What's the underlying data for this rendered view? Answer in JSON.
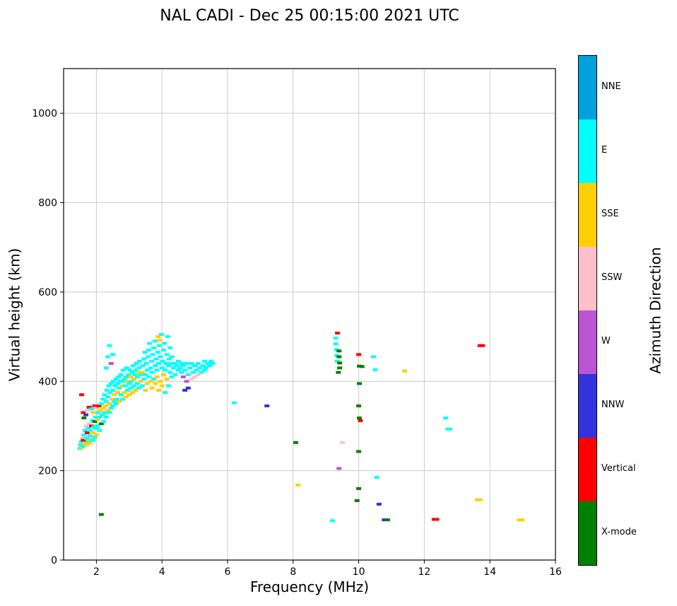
{
  "chart_data": {
    "type": "scatter",
    "title": "NAL CADI - Dec 25 00:15:00 2021 UTC",
    "xlabel": "Frequency (MHz)",
    "ylabel": "Virtual height (km)",
    "xlim": [
      1,
      16
    ],
    "ylim": [
      0,
      1100
    ],
    "xticks": [
      2,
      4,
      6,
      8,
      10,
      12,
      14,
      16
    ],
    "yticks": [
      0,
      200,
      400,
      600,
      800,
      1000
    ],
    "grid": true,
    "grid_color": "#cccccc",
    "marker": {
      "width": 7,
      "height": 4
    },
    "colorbar": {
      "title": "Azimuth Direction",
      "categories": [
        {
          "label": "NNE",
          "color": "#00A0DC"
        },
        {
          "label": "E",
          "color": "#00FFFF"
        },
        {
          "label": "SSE",
          "color": "#FFD000"
        },
        {
          "label": "SSW",
          "color": "#FFC0CB"
        },
        {
          "label": "W",
          "color": "#BA55D3"
        },
        {
          "label": "NNW",
          "color": "#3333DD"
        },
        {
          "label": "Vertical",
          "color": "#FF0000"
        },
        {
          "label": "X-mode",
          "color": "#008000"
        }
      ]
    },
    "points_format": [
      "frequency_mhz",
      "virtual_height_km",
      "category_index"
    ],
    "points": [
      [
        1.5,
        250,
        1
      ],
      [
        1.52,
        258,
        1
      ],
      [
        1.55,
        252,
        2
      ],
      [
        1.55,
        265,
        1
      ],
      [
        1.58,
        273,
        3
      ],
      [
        1.6,
        255,
        1
      ],
      [
        1.6,
        268,
        6
      ],
      [
        1.62,
        280,
        1
      ],
      [
        1.65,
        262,
        2
      ],
      [
        1.65,
        290,
        1
      ],
      [
        1.68,
        300,
        3
      ],
      [
        1.7,
        258,
        2
      ],
      [
        1.7,
        272,
        1
      ],
      [
        1.72,
        285,
        6
      ],
      [
        1.75,
        265,
        1
      ],
      [
        1.75,
        295,
        1
      ],
      [
        1.78,
        305,
        3
      ],
      [
        1.8,
        262,
        2
      ],
      [
        1.8,
        278,
        1
      ],
      [
        1.82,
        290,
        1
      ],
      [
        1.85,
        270,
        2
      ],
      [
        1.85,
        300,
        6
      ],
      [
        1.88,
        312,
        1
      ],
      [
        1.9,
        268,
        1
      ],
      [
        1.9,
        285,
        2
      ],
      [
        1.92,
        298,
        1
      ],
      [
        1.95,
        275,
        1
      ],
      [
        1.95,
        310,
        7
      ],
      [
        1.98,
        320,
        1
      ],
      [
        2.0,
        280,
        2
      ],
      [
        2.0,
        295,
        1
      ],
      [
        1.55,
        370,
        6
      ],
      [
        1.6,
        330,
        6
      ],
      [
        1.62,
        318,
        7
      ],
      [
        1.68,
        325,
        5
      ],
      [
        1.72,
        335,
        3
      ],
      [
        1.78,
        342,
        6
      ],
      [
        1.85,
        338,
        1
      ],
      [
        1.9,
        330,
        2
      ],
      [
        1.95,
        345,
        6
      ],
      [
        2.0,
        340,
        3
      ],
      [
        2.02,
        300,
        1
      ],
      [
        2.05,
        315,
        2
      ],
      [
        2.05,
        330,
        1
      ],
      [
        2.08,
        345,
        6
      ],
      [
        2.1,
        290,
        1
      ],
      [
        2.1,
        320,
        1
      ],
      [
        2.12,
        335,
        2
      ],
      [
        2.15,
        350,
        1
      ],
      [
        2.15,
        305,
        7
      ],
      [
        2.18,
        325,
        1
      ],
      [
        2.2,
        340,
        2
      ],
      [
        2.2,
        360,
        1
      ],
      [
        2.22,
        310,
        1
      ],
      [
        2.25,
        330,
        1
      ],
      [
        2.25,
        370,
        1
      ],
      [
        2.28,
        345,
        2
      ],
      [
        2.3,
        320,
        1
      ],
      [
        2.3,
        355,
        1
      ],
      [
        2.32,
        380,
        1
      ],
      [
        2.35,
        335,
        2
      ],
      [
        2.35,
        365,
        1
      ],
      [
        2.38,
        390,
        1
      ],
      [
        2.4,
        330,
        1
      ],
      [
        2.4,
        350,
        2
      ],
      [
        2.42,
        375,
        1
      ],
      [
        2.45,
        340,
        1
      ],
      [
        2.45,
        395,
        1
      ],
      [
        2.48,
        360,
        2
      ],
      [
        2.5,
        345,
        1
      ],
      [
        2.5,
        380,
        1
      ],
      [
        2.52,
        400,
        1
      ],
      [
        2.55,
        355,
        1
      ],
      [
        2.55,
        370,
        2
      ],
      [
        2.58,
        390,
        1
      ],
      [
        2.6,
        350,
        1
      ],
      [
        2.6,
        405,
        1
      ],
      [
        2.3,
        430,
        1
      ],
      [
        2.35,
        455,
        1
      ],
      [
        2.4,
        480,
        1
      ],
      [
        2.45,
        440,
        4
      ],
      [
        2.5,
        460,
        1
      ],
      [
        2.62,
        360,
        1
      ],
      [
        2.65,
        375,
        2
      ],
      [
        2.65,
        395,
        1
      ],
      [
        2.68,
        410,
        1
      ],
      [
        2.7,
        355,
        2
      ],
      [
        2.7,
        385,
        1
      ],
      [
        2.72,
        400,
        1
      ],
      [
        2.75,
        370,
        1
      ],
      [
        2.75,
        415,
        1
      ],
      [
        2.78,
        390,
        2
      ],
      [
        2.8,
        360,
        1
      ],
      [
        2.8,
        400,
        1
      ],
      [
        2.82,
        425,
        1
      ],
      [
        2.85,
        375,
        2
      ],
      [
        2.85,
        405,
        1
      ],
      [
        2.88,
        390,
        1
      ],
      [
        2.9,
        365,
        2
      ],
      [
        2.9,
        410,
        1
      ],
      [
        2.92,
        430,
        1
      ],
      [
        2.95,
        380,
        1
      ],
      [
        2.95,
        400,
        2
      ],
      [
        2.98,
        415,
        1
      ],
      [
        3.0,
        370,
        2
      ],
      [
        3.0,
        395,
        1
      ],
      [
        3.02,
        425,
        1
      ],
      [
        3.05,
        385,
        1
      ],
      [
        3.05,
        410,
        2
      ],
      [
        3.08,
        400,
        1
      ],
      [
        3.1,
        375,
        2
      ],
      [
        3.1,
        420,
        1
      ],
      [
        3.12,
        435,
        1
      ],
      [
        3.15,
        390,
        1
      ],
      [
        3.15,
        405,
        2
      ],
      [
        3.18,
        415,
        1
      ],
      [
        3.2,
        380,
        2
      ],
      [
        3.2,
        425,
        1
      ],
      [
        3.22,
        440,
        1
      ],
      [
        3.25,
        395,
        1
      ],
      [
        3.25,
        410,
        1
      ],
      [
        3.28,
        420,
        2
      ],
      [
        3.3,
        385,
        1
      ],
      [
        3.3,
        430,
        1
      ],
      [
        3.32,
        445,
        1
      ],
      [
        3.35,
        400,
        2
      ],
      [
        3.35,
        415,
        1
      ],
      [
        3.4,
        390,
        1
      ],
      [
        3.4,
        420,
        2
      ],
      [
        3.42,
        435,
        1
      ],
      [
        3.45,
        405,
        1
      ],
      [
        3.45,
        450,
        1
      ],
      [
        3.48,
        465,
        1
      ],
      [
        3.5,
        380,
        2
      ],
      [
        3.5,
        415,
        1
      ],
      [
        3.52,
        440,
        1
      ],
      [
        3.55,
        395,
        2
      ],
      [
        3.55,
        425,
        1
      ],
      [
        3.58,
        455,
        1
      ],
      [
        3.6,
        410,
        1
      ],
      [
        3.6,
        470,
        1
      ],
      [
        3.62,
        485,
        1
      ],
      [
        3.65,
        400,
        2
      ],
      [
        3.65,
        430,
        1
      ],
      [
        3.68,
        445,
        1
      ],
      [
        3.7,
        385,
        2
      ],
      [
        3.7,
        420,
        1
      ],
      [
        3.72,
        460,
        1
      ],
      [
        3.75,
        405,
        1
      ],
      [
        3.75,
        475,
        1
      ],
      [
        3.78,
        490,
        1
      ],
      [
        3.8,
        395,
        2
      ],
      [
        3.8,
        435,
        1
      ],
      [
        3.82,
        450,
        1
      ],
      [
        3.85,
        410,
        2
      ],
      [
        3.85,
        425,
        1
      ],
      [
        3.88,
        465,
        1
      ],
      [
        3.88,
        500,
        2
      ],
      [
        3.9,
        380,
        2
      ],
      [
        3.9,
        440,
        1
      ],
      [
        3.92,
        480,
        1
      ],
      [
        3.92,
        492,
        2
      ],
      [
        3.95,
        400,
        2
      ],
      [
        3.95,
        455,
        1
      ],
      [
        3.98,
        505,
        1
      ],
      [
        4.0,
        390,
        2
      ],
      [
        4.0,
        430,
        1
      ],
      [
        4.02,
        445,
        1
      ],
      [
        4.05,
        415,
        2
      ],
      [
        4.05,
        470,
        1
      ],
      [
        4.08,
        485,
        1
      ],
      [
        4.1,
        375,
        1
      ],
      [
        4.1,
        425,
        1
      ],
      [
        4.12,
        440,
        1
      ],
      [
        4.15,
        405,
        2
      ],
      [
        4.15,
        460,
        1
      ],
      [
        4.18,
        500,
        1
      ],
      [
        4.2,
        390,
        1
      ],
      [
        4.2,
        435,
        1
      ],
      [
        4.22,
        450,
        1
      ],
      [
        4.25,
        420,
        1
      ],
      [
        4.25,
        475,
        1
      ],
      [
        4.28,
        440,
        1
      ],
      [
        4.3,
        410,
        1
      ],
      [
        4.3,
        455,
        1
      ],
      [
        4.35,
        430,
        1
      ],
      [
        4.4,
        440,
        1
      ],
      [
        4.4,
        415,
        1
      ],
      [
        4.45,
        435,
        1
      ],
      [
        4.5,
        425,
        1
      ],
      [
        4.5,
        445,
        1
      ],
      [
        4.55,
        430,
        1
      ],
      [
        4.6,
        420,
        1
      ],
      [
        4.6,
        440,
        1
      ],
      [
        4.65,
        410,
        4
      ],
      [
        4.65,
        435,
        1
      ],
      [
        4.7,
        380,
        5
      ],
      [
        4.7,
        425,
        1
      ],
      [
        4.75,
        400,
        4
      ],
      [
        4.75,
        440,
        1
      ],
      [
        4.8,
        415,
        1
      ],
      [
        4.8,
        385,
        5
      ],
      [
        4.85,
        430,
        1
      ],
      [
        4.9,
        405,
        3
      ],
      [
        4.9,
        440,
        1
      ],
      [
        4.95,
        420,
        1
      ],
      [
        5.0,
        435,
        1
      ],
      [
        5.0,
        410,
        3
      ],
      [
        5.05,
        425,
        1
      ],
      [
        5.1,
        440,
        1
      ],
      [
        5.1,
        415,
        3
      ],
      [
        5.15,
        430,
        1
      ],
      [
        5.2,
        420,
        1
      ],
      [
        5.25,
        435,
        1
      ],
      [
        5.3,
        425,
        1
      ],
      [
        5.3,
        445,
        1
      ],
      [
        5.35,
        430,
        1
      ],
      [
        5.4,
        440,
        1
      ],
      [
        5.45,
        435,
        1
      ],
      [
        5.5,
        445,
        1
      ],
      [
        5.55,
        440,
        1
      ],
      [
        2.15,
        102,
        7
      ],
      [
        6.2,
        352,
        1
      ],
      [
        7.2,
        345,
        5
      ],
      [
        8.08,
        263,
        7
      ],
      [
        8.15,
        168,
        2
      ],
      [
        9.2,
        88,
        1
      ],
      [
        9.35,
        508,
        6
      ],
      [
        9.3,
        497,
        1
      ],
      [
        9.3,
        484,
        1
      ],
      [
        9.32,
        471,
        1
      ],
      [
        9.33,
        458,
        1
      ],
      [
        9.35,
        445,
        1
      ],
      [
        9.4,
        468,
        7
      ],
      [
        9.4,
        455,
        7
      ],
      [
        9.42,
        441,
        7
      ],
      [
        9.42,
        430,
        7
      ],
      [
        9.38,
        420,
        7
      ],
      [
        10.0,
        460,
        6
      ],
      [
        10.02,
        434,
        7
      ],
      [
        10.1,
        433,
        7
      ],
      [
        10.45,
        455,
        1
      ],
      [
        10.5,
        426,
        1
      ],
      [
        10.02,
        395,
        7
      ],
      [
        11.4,
        423,
        2
      ],
      [
        10.0,
        345,
        7
      ],
      [
        10.02,
        318,
        7
      ],
      [
        10.05,
        312,
        6
      ],
      [
        12.65,
        318,
        1
      ],
      [
        12.72,
        293,
        1
      ],
      [
        12.78,
        293,
        1
      ],
      [
        9.5,
        263,
        3
      ],
      [
        10.0,
        243,
        7
      ],
      [
        9.4,
        205,
        4
      ],
      [
        10.55,
        185,
        1
      ],
      [
        10.0,
        160,
        7
      ],
      [
        9.95,
        133,
        7
      ],
      [
        10.62,
        125,
        5
      ],
      [
        13.62,
        135,
        2
      ],
      [
        13.7,
        135,
        2
      ],
      [
        10.78,
        90,
        5
      ],
      [
        10.88,
        90,
        7
      ],
      [
        12.3,
        91,
        6
      ],
      [
        12.38,
        91,
        6
      ],
      [
        14.9,
        90,
        2
      ],
      [
        14.98,
        90,
        2
      ],
      [
        13.7,
        480,
        6
      ],
      [
        13.78,
        480,
        6
      ]
    ]
  }
}
